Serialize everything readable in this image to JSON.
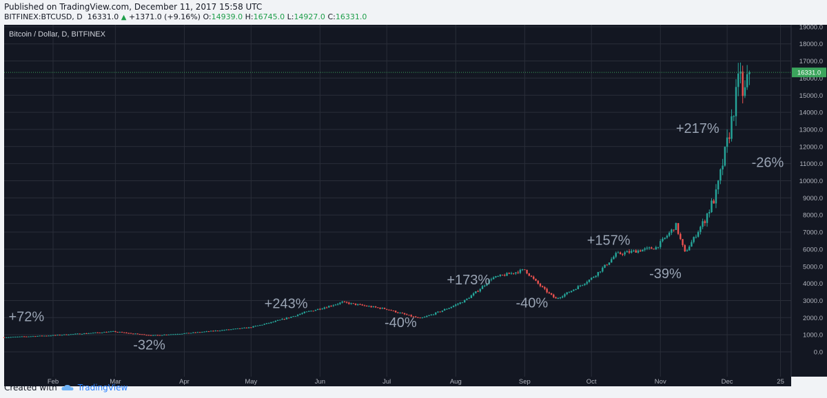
{
  "header": {
    "published": "Published on TradingView.com, December 11, 2017 15:58 UTC",
    "symbol": "BITFINEX:BTCUSD, D",
    "last": "16331.0",
    "change": "+1371.0 (+9.16%)",
    "o_label": "O:",
    "o_value": "14939.0",
    "h_label": "H:",
    "h_value": "16745.0",
    "l_label": "L:",
    "l_value": "14927.0",
    "c_label": "C:",
    "c_value": "16331.0"
  },
  "footer": {
    "created_with": "Created with",
    "brand": "TradingView"
  },
  "colors": {
    "background": "#131722",
    "up": "#26a69a",
    "down": "#ef5350",
    "grid": "#2a2e39",
    "last_price_line": "#3ba55c",
    "annotation": "#9aa4b4"
  },
  "chart_data": {
    "type": "candlestick",
    "title": "Bitcoin / Dollar, D, BITFINEX",
    "x_tick_labels": [
      "Feb",
      "Mar",
      "Apr",
      "May",
      "Jun",
      "Jul",
      "Aug",
      "Sep",
      "Oct",
      "Nov",
      "Dec",
      "25"
    ],
    "y_tick_labels": [
      "19000.0",
      "18000.0",
      "17000.0",
      "16000.0",
      "15000.0",
      "14000.0",
      "13000.0",
      "12000.0",
      "11000.0",
      "10000.0",
      "9000.0",
      "8000.0",
      "7000.0",
      "6000.0",
      "5000.0",
      "4000.0",
      "3000.0",
      "2000.0",
      "1000.0",
      "0.0"
    ],
    "ylim": [
      0,
      19000
    ],
    "last_price_label": "16331.0",
    "last_price": 16331,
    "grid": true,
    "price_path": [
      [
        "2017-01-10",
        850
      ],
      [
        "2017-01-31",
        960
      ],
      [
        "2017-02-28",
        1190
      ],
      [
        "2017-03-18",
        960
      ],
      [
        "2017-04-01",
        1080
      ],
      [
        "2017-04-30",
        1420
      ],
      [
        "2017-05-25",
        2300
      ],
      [
        "2017-06-11",
        2900
      ],
      [
        "2017-07-01",
        2500
      ],
      [
        "2017-07-16",
        1950
      ],
      [
        "2017-08-05",
        3000
      ],
      [
        "2017-08-17",
        4300
      ],
      [
        "2017-09-01",
        4800
      ],
      [
        "2017-09-15",
        3100
      ],
      [
        "2017-10-01",
        4300
      ],
      [
        "2017-10-12",
        5700
      ],
      [
        "2017-10-30",
        6100
      ],
      [
        "2017-11-08",
        7400
      ],
      [
        "2017-11-12",
        5800
      ],
      [
        "2017-11-26",
        9200
      ],
      [
        "2017-11-29",
        11000
      ],
      [
        "2017-12-07",
        16600
      ],
      [
        "2017-12-08",
        14700
      ],
      [
        "2017-12-11",
        16331
      ]
    ],
    "annotations": [
      {
        "text": "+72%",
        "date": "2017-01-12",
        "price": 1800
      },
      {
        "text": "-32%",
        "date": "2017-03-09",
        "price": 150
      },
      {
        "text": "+243%",
        "date": "2017-05-07",
        "price": 2550
      },
      {
        "text": "-40%",
        "date": "2017-06-30",
        "price": 1450
      },
      {
        "text": "+173%",
        "date": "2017-07-28",
        "price": 3950
      },
      {
        "text": "-40%",
        "date": "2017-08-28",
        "price": 2600
      },
      {
        "text": "+157%",
        "date": "2017-09-29",
        "price": 6250
      },
      {
        "text": "-39%",
        "date": "2017-10-27",
        "price": 4300
      },
      {
        "text": "+217%",
        "date": "2017-11-08",
        "price": 12800
      },
      {
        "text": "-26%",
        "date": "2017-12-12",
        "price": 10800
      }
    ]
  }
}
